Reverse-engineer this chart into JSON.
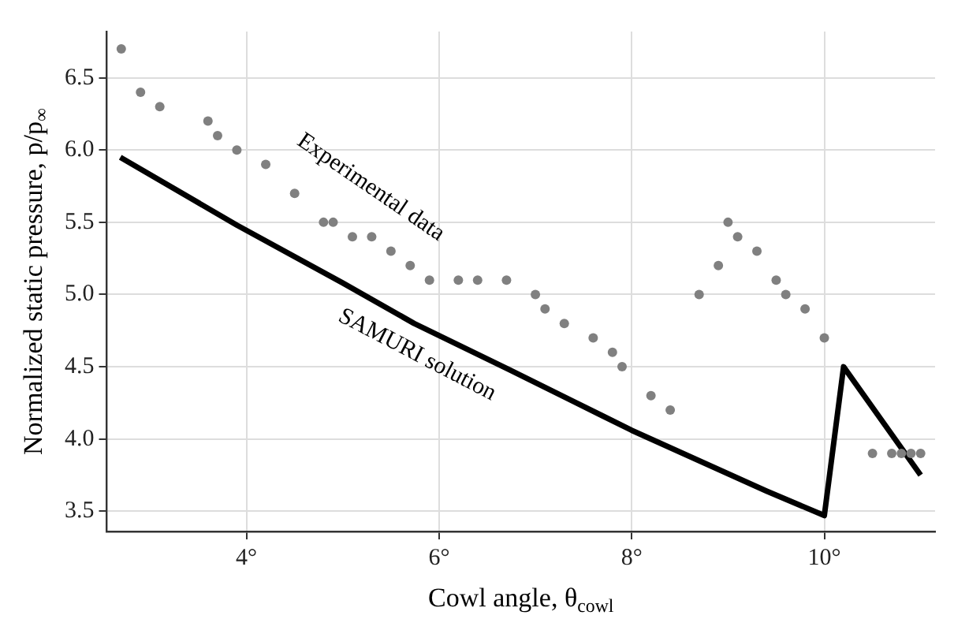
{
  "chart_data": {
    "type": "scatter",
    "xlabel": "Cowl angle, θ$_{cowl}$",
    "ylabel": "Normalized static pressure, p/p$_{∞}$",
    "xlim": [
      2.55,
      11.15
    ],
    "ylim": [
      3.36,
      6.82
    ],
    "xticks": [
      {
        "value": 4,
        "label": "4°"
      },
      {
        "value": 6,
        "label": "6°"
      },
      {
        "value": 8,
        "label": "8°"
      },
      {
        "value": 10,
        "label": "10°"
      }
    ],
    "yticks": [
      3.5,
      {
        "value": 4,
        "label": "4.0"
      },
      4.5,
      {
        "value": 5,
        "label": "5.0"
      },
      5.5,
      {
        "value": 6,
        "label": "6.0"
      },
      6.5
    ],
    "grid": true,
    "marker": "circle",
    "series": [
      {
        "name": "Experimental data",
        "color": "#808080",
        "x": [
          2.7,
          2.9,
          3.1,
          3.6,
          3.7,
          3.9,
          4.2,
          4.5,
          4.8,
          4.9,
          5.1,
          5.3,
          5.5,
          5.7,
          5.9,
          6.2,
          6.4,
          6.7,
          7.0,
          7.1,
          7.3,
          7.6,
          7.8,
          7.9,
          8.2,
          8.4,
          8.7,
          8.9,
          9.0,
          9.1,
          9.3,
          9.5,
          9.6,
          9.8,
          10.0,
          10.5,
          10.7,
          10.8,
          10.9,
          11.0
        ],
        "values": [
          6.7,
          6.4,
          6.3,
          6.2,
          6.1,
          6.0,
          5.9,
          5.7,
          5.5,
          5.5,
          5.4,
          5.4,
          5.3,
          5.2,
          5.1,
          5.1,
          5.1,
          5.1,
          5.0,
          4.9,
          4.8,
          4.7,
          4.6,
          4.5,
          4.3,
          4.2,
          5.0,
          5.2,
          5.5,
          5.4,
          5.3,
          5.1,
          5.0,
          4.9,
          4.7,
          3.9,
          3.9,
          3.9,
          3.9,
          3.9
        ]
      },
      {
        "type": "line",
        "name": "SAMURI solution",
        "color": "#000000",
        "marker": "none",
        "x": [
          2.69,
          3.9,
          5.0,
          5.74,
          6.73,
          8.0,
          9.4,
          10.0,
          10.2,
          11.0
        ],
        "values": [
          5.95,
          5.48,
          5.08,
          4.8,
          4.48,
          4.06,
          3.64,
          3.47,
          4.5,
          3.75
        ]
      }
    ]
  }
}
